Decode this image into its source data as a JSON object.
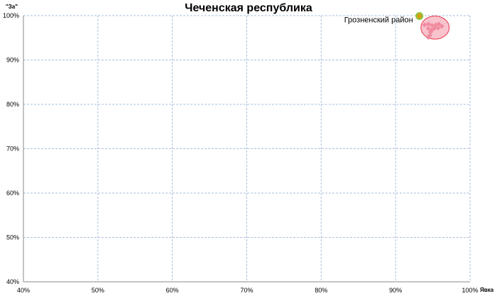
{
  "chart_data": {
    "type": "scatter",
    "title": "Чеченская республика",
    "xlabel": "Явка",
    "ylabel": "\"За\"",
    "xlim": [
      40,
      100
    ],
    "ylim": [
      40,
      100
    ],
    "grid": true,
    "x_ticks": [
      "40%",
      "50%",
      "60%",
      "70%",
      "80%",
      "90%",
      "100%"
    ],
    "y_ticks": [
      "40%",
      "50%",
      "60%",
      "70%",
      "80%",
      "90%",
      "100%"
    ],
    "highlight": {
      "label": "Грозненский район",
      "x": 93.2,
      "y": 99.9,
      "color": "#8cc63f"
    },
    "points_color": "#f08ca0",
    "points": [
      {
        "x": 93.9,
        "y": 97.9
      },
      {
        "x": 94.4,
        "y": 98.1
      },
      {
        "x": 94.9,
        "y": 97.8
      },
      {
        "x": 95.4,
        "y": 97.9
      },
      {
        "x": 95.8,
        "y": 98.1
      },
      {
        "x": 96.2,
        "y": 97.6
      },
      {
        "x": 94.4,
        "y": 97.1
      },
      {
        "x": 94.9,
        "y": 96.8
      },
      {
        "x": 95.2,
        "y": 97.1
      },
      {
        "x": 95.7,
        "y": 97.2
      },
      {
        "x": 94.7,
        "y": 96.3
      },
      {
        "x": 94.6,
        "y": 95.5
      },
      {
        "x": 94.4,
        "y": 95.1
      }
    ],
    "cluster_ellipse": {
      "cx": 95.3,
      "cy": 97.3,
      "rx": 1.9,
      "ry": 2.6,
      "color": "#e8334a"
    }
  }
}
